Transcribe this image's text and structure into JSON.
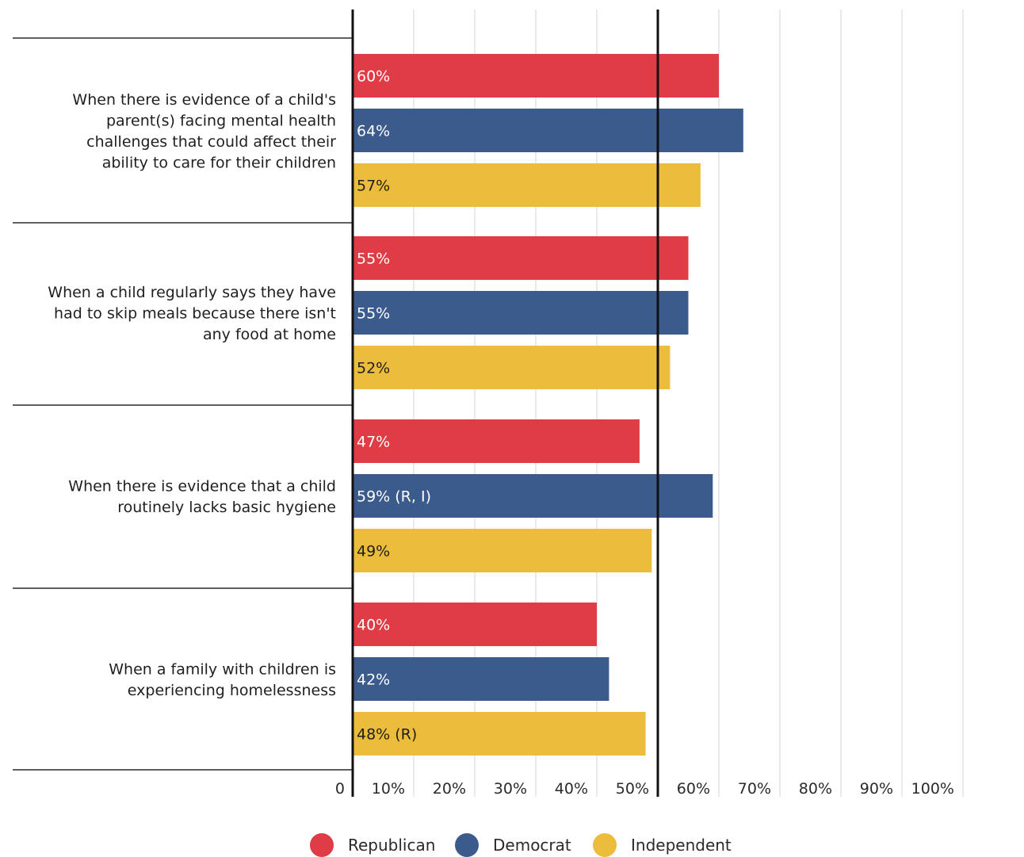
{
  "chart_data": {
    "type": "bar",
    "orientation": "horizontal",
    "categories": [
      [
        "When there is evidence of a child's",
        "parent(s) facing mental health",
        "challenges that could affect their",
        "ability to care for their children"
      ],
      [
        "When a child regularly says they have",
        "had to skip meals because there isn't",
        "any food at home"
      ],
      [
        "When there is evidence that a child",
        "routinely lacks basic hygiene"
      ],
      [
        "When a family with children is",
        "experiencing homelessness"
      ]
    ],
    "series": [
      {
        "name": "Republican",
        "color": "#e03c45",
        "label_color": "#ffffff",
        "values": [
          60,
          55,
          47,
          40
        ],
        "labels": [
          "60%",
          "55%",
          "47%",
          "40%"
        ]
      },
      {
        "name": "Democrat",
        "color": "#3b5b8c",
        "label_color": "#ffffff",
        "values": [
          64,
          55,
          59,
          42
        ],
        "labels": [
          "64%",
          "55%",
          "59% (R, I)",
          "42%"
        ]
      },
      {
        "name": "Independent",
        "color": "#ecbd3c",
        "label_color": "#1f1f1f",
        "values": [
          57,
          52,
          49,
          48
        ],
        "labels": [
          "57%",
          "52%",
          "49%",
          "48% (R)"
        ]
      }
    ],
    "xlim": [
      0,
      100
    ],
    "x_ticks": [
      "0",
      "10%",
      "20%",
      "30%",
      "40%",
      "50%",
      "60%",
      "70%",
      "80%",
      "90%",
      "100%"
    ],
    "reference_line": 50,
    "grid": true,
    "legend_position": "bottom"
  }
}
